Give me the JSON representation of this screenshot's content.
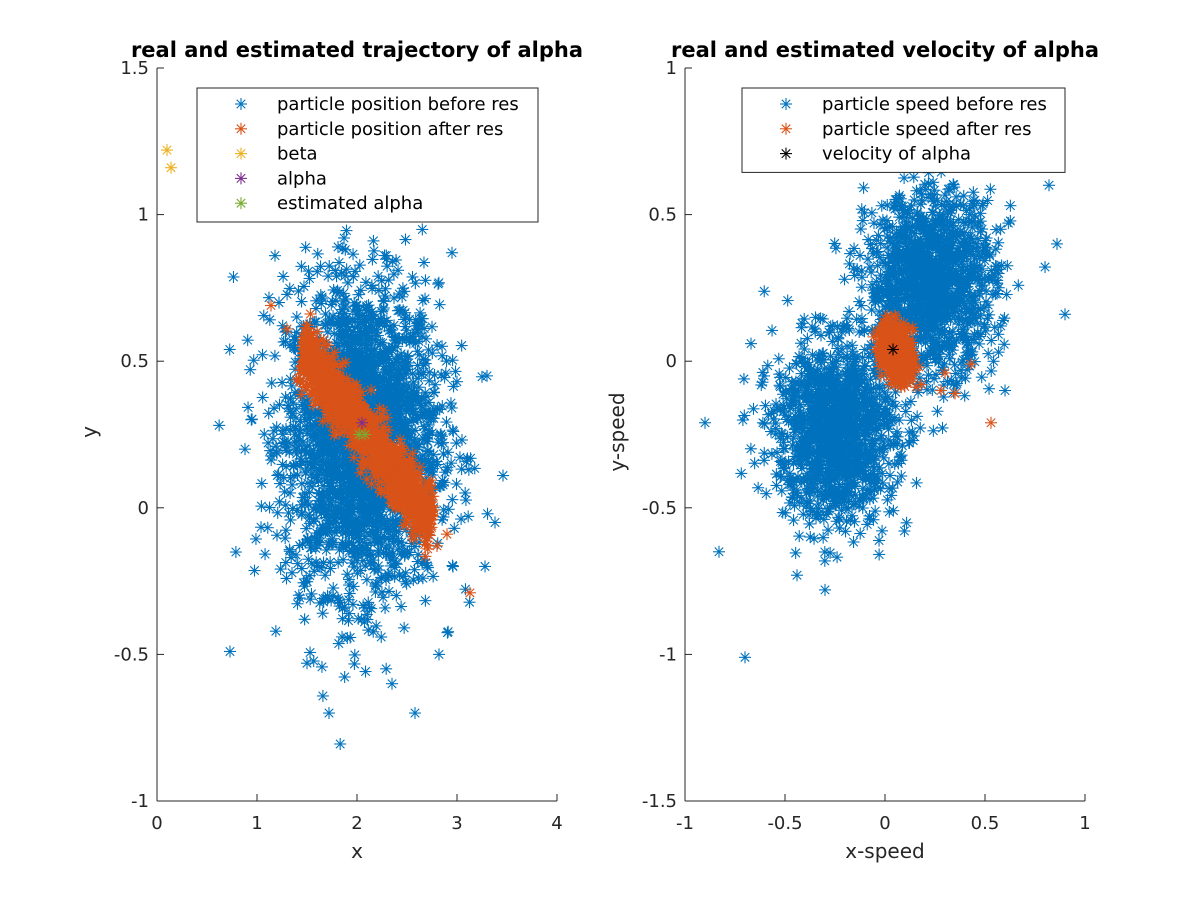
{
  "chart_data": [
    {
      "type": "scatter",
      "title": "real and estimated trajectory of alpha",
      "xlabel": "x",
      "ylabel": "y",
      "xlim": [
        0,
        4
      ],
      "ylim": [
        -1,
        1.5
      ],
      "xticks": [
        "0",
        "1",
        "2",
        "3",
        "4"
      ],
      "yticks": [
        "-1",
        "-0.5",
        "0",
        "0.5",
        "1",
        "1.5"
      ],
      "legend_position": "top-right",
      "series": [
        {
          "name": "particle position before res",
          "color": "#0072BD",
          "distribution": {
            "kind": "gaussian",
            "count": 2600,
            "center": [
              2.05,
              0.24
            ],
            "sd": [
              0.38,
              0.26
            ],
            "rho": 0.0
          },
          "points": [
            [
              0.73,
              -0.49
            ],
            [
              1.72,
              -0.7
            ],
            [
              2.58,
              -0.7
            ],
            [
              3.46,
              0.11
            ],
            [
              0.88,
              0.2
            ],
            [
              1.18,
              0.86
            ],
            [
              1.22,
              0.7
            ],
            [
              3.3,
              0.45
            ],
            [
              2.95,
              0.87
            ],
            [
              3.38,
              -0.05
            ],
            [
              3.28,
              -0.2
            ],
            [
              2.82,
              -0.5
            ],
            [
              1.5,
              -0.53
            ],
            [
              2.35,
              -0.6
            ]
          ]
        },
        {
          "name": "particle position after res",
          "color": "#D95319",
          "distribution": {
            "kind": "line",
            "count": 1300,
            "from": [
              1.45,
              0.55
            ],
            "to": [
              2.75,
              -0.06
            ],
            "width": 0.05
          },
          "points": [
            [
              1.14,
              0.69
            ],
            [
              1.3,
              0.61
            ],
            [
              3.13,
              -0.29
            ],
            [
              2.9,
              -0.09
            ],
            [
              2.8,
              -0.13
            ],
            [
              2.7,
              -0.05
            ]
          ]
        },
        {
          "name": "beta",
          "color": "#EDB120",
          "points": [
            [
              0.1,
              1.22
            ],
            [
              0.14,
              1.16
            ]
          ]
        },
        {
          "name": "alpha",
          "color": "#7E2F8E",
          "points": [
            [
              2.05,
              0.29
            ]
          ]
        },
        {
          "name": "estimated alpha",
          "color": "#77AC30",
          "points": [
            [
              2.02,
              0.25
            ],
            [
              2.08,
              0.25
            ]
          ]
        }
      ]
    },
    {
      "type": "scatter",
      "title": "real and estimated velocity of alpha",
      "xlabel": "x-speed",
      "ylabel": "y-speed",
      "xlim": [
        -1,
        1
      ],
      "ylim": [
        -1.5,
        1
      ],
      "xticks": [
        "-1",
        "-0.5",
        "0",
        "0.5",
        "1"
      ],
      "yticks": [
        "-1.5",
        "-1",
        "-0.5",
        "0",
        "0.5",
        "1"
      ],
      "legend_position": "top-right",
      "series": [
        {
          "name": "particle speed before res",
          "color": "#0072BD",
          "distribution": {
            "kind": "two-gaussians",
            "count": 2600,
            "clusters": [
              {
                "center": [
                  0.23,
                  0.27
                ],
                "sd": [
                  0.16,
                  0.15
                ],
                "weight": 0.5
              },
              {
                "center": [
                  -0.25,
                  -0.24
                ],
                "sd": [
                  0.15,
                  0.15
                ],
                "weight": 0.5
              }
            ]
          },
          "points": [
            [
              -0.7,
              -1.01
            ],
            [
              -0.9,
              -0.21
            ],
            [
              -0.83,
              -0.65
            ],
            [
              -0.44,
              -0.73
            ],
            [
              -0.3,
              -0.78
            ],
            [
              0.9,
              0.16
            ],
            [
              0.82,
              0.6
            ],
            [
              0.86,
              0.4
            ],
            [
              -0.67,
              0.06
            ],
            [
              -0.35,
              0.11
            ],
            [
              0.6,
              -0.1
            ]
          ]
        },
        {
          "name": "particle speed after res",
          "color": "#D95319",
          "distribution": {
            "kind": "gaussian",
            "count": 500,
            "center": [
              0.06,
              0.03
            ],
            "sd": [
              0.04,
              0.05
            ],
            "rho": -0.3
          },
          "points": [
            [
              -0.02,
              -0.05
            ],
            [
              0.17,
              -0.02
            ],
            [
              0.28,
              -0.1
            ],
            [
              0.35,
              -0.11
            ],
            [
              0.43,
              -0.01
            ],
            [
              0.53,
              -0.21
            ],
            [
              0.3,
              -0.04
            ]
          ]
        },
        {
          "name": "velocity of alpha",
          "color": "#000000",
          "points": [
            [
              0.04,
              0.04
            ]
          ]
        }
      ]
    }
  ]
}
